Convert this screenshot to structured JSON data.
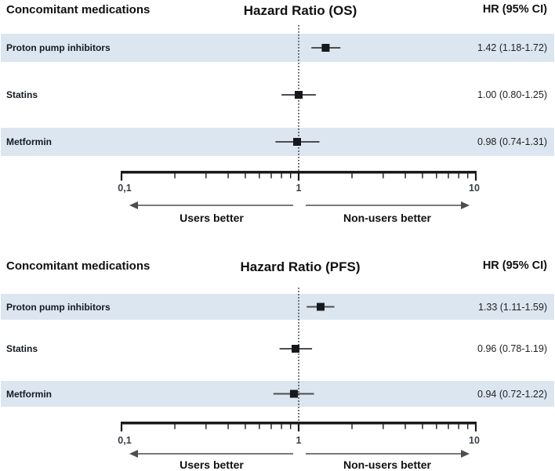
{
  "panels": [
    {
      "name": "OS",
      "header": {
        "left": "Concomitant medications",
        "center": "Hazard Ratio (OS)",
        "right": "HR (95% CI)"
      },
      "rows": [
        {
          "label": "Proton pump inhibitors",
          "hr_text": "1.42 (1.18-1.72)",
          "hr": 1.42,
          "ci_low": 1.18,
          "ci_high": 1.72
        },
        {
          "label": "Statins",
          "hr_text": "1.00 (0.80-1.25)",
          "hr": 1.0,
          "ci_low": 0.8,
          "ci_high": 1.25
        },
        {
          "label": "Metformin",
          "hr_text": "0.98 (0.74-1.31)",
          "hr": 0.98,
          "ci_low": 0.74,
          "ci_high": 1.31
        }
      ],
      "axis": {
        "scale": "log",
        "min": 0.1,
        "max": 10,
        "reference": 1,
        "major_ticks": [
          0.1,
          1,
          10
        ],
        "tick_labels": [
          "0,1",
          "1",
          "10"
        ]
      },
      "directions": {
        "left": "Users better",
        "right": "Non-users better"
      }
    },
    {
      "name": "PFS",
      "header": {
        "left": "Concomitant medications",
        "center": "Hazard Ratio (PFS)",
        "right": "HR (95% CI)"
      },
      "rows": [
        {
          "label": "Proton pump inhibitors",
          "hr_text": "1.33 (1.11-1.59)",
          "hr": 1.33,
          "ci_low": 1.11,
          "ci_high": 1.59
        },
        {
          "label": "Statins",
          "hr_text": "0.96 (0.78-1.19)",
          "hr": 0.96,
          "ci_low": 0.78,
          "ci_high": 1.19
        },
        {
          "label": "Metformin",
          "hr_text": "0.94 (0.72-1.22)",
          "hr": 0.94,
          "ci_low": 0.72,
          "ci_high": 1.22
        }
      ],
      "axis": {
        "scale": "log",
        "min": 0.1,
        "max": 10,
        "reference": 1,
        "major_ticks": [
          0.1,
          1,
          10
        ],
        "tick_labels": [
          "0,1",
          "1",
          "10"
        ]
      },
      "directions": {
        "left": "Users better",
        "right": "Non-users better"
      }
    }
  ],
  "chart_data": [
    {
      "type": "scatter",
      "subtype": "forest-plot",
      "title": "Hazard Ratio (OS)",
      "categories": [
        "Proton pump inhibitors",
        "Statins",
        "Metformin"
      ],
      "series": [
        {
          "name": "HR (95% CI) OS",
          "values": [
            1.42,
            1.0,
            0.98
          ],
          "ci_low": [
            1.18,
            0.8,
            0.74
          ],
          "ci_high": [
            1.72,
            1.25,
            1.31
          ],
          "labels": [
            "1.42 (1.18-1.72)",
            "1.00 (0.80-1.25)",
            "0.98 (0.74-1.31)"
          ]
        }
      ],
      "xscale": "log",
      "xlim": [
        0.1,
        10
      ],
      "x_ticks": [
        0.1,
        1,
        10
      ],
      "x_tick_labels": [
        "0,1",
        "1",
        "10"
      ],
      "reference_line": 1,
      "annotations": [
        "Users better",
        "Non-users better"
      ],
      "legend": false,
      "grid": false
    },
    {
      "type": "scatter",
      "subtype": "forest-plot",
      "title": "Hazard Ratio (PFS)",
      "categories": [
        "Proton pump inhibitors",
        "Statins",
        "Metformin"
      ],
      "series": [
        {
          "name": "HR (95% CI) PFS",
          "values": [
            1.33,
            0.96,
            0.94
          ],
          "ci_low": [
            1.11,
            0.78,
            0.72
          ],
          "ci_high": [
            1.59,
            1.19,
            1.22
          ],
          "labels": [
            "1.33 (1.11-1.59)",
            "0.96 (0.78-1.19)",
            "0.94 (0.72-1.22)"
          ]
        }
      ],
      "xscale": "log",
      "xlim": [
        0.1,
        10
      ],
      "x_ticks": [
        0.1,
        1,
        10
      ],
      "x_tick_labels": [
        "0,1",
        "1",
        "10"
      ],
      "reference_line": 1,
      "annotations": [
        "Users better",
        "Non-users better"
      ],
      "legend": false,
      "grid": false
    }
  ],
  "colors": {
    "row_band": "#dce6f1",
    "marker": "#15181d",
    "ci_line": "#4d4d4d",
    "axis": "#1a1a1a",
    "reference_line": "#2b2b2b",
    "tick_label": "#3a3f47",
    "text": "#101010",
    "arrow": "#4d4d4d"
  }
}
